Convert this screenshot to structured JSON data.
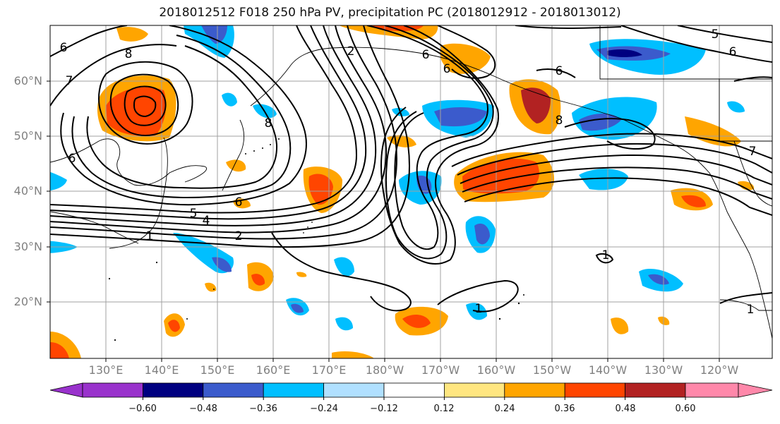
{
  "title": "2018012512 F018 250 hPa PV, precipitation PC (2018012912 - 2018013012)",
  "lat_labels": [
    "60°N",
    "50°N",
    "40°N",
    "30°N",
    "20°N"
  ],
  "lon_labels": [
    "130°E",
    "140°E",
    "150°E",
    "160°E",
    "170°E",
    "180°W",
    "170°W",
    "160°W",
    "150°W",
    "140°W",
    "130°W",
    "120°W"
  ],
  "colorbar": {
    "ticks": [
      "−0.60",
      "−0.48",
      "−0.36",
      "−0.24",
      "−0.12",
      "0.12",
      "0.24",
      "0.36",
      "0.48",
      "0.60"
    ],
    "colors": [
      "#9932CC",
      "#000080",
      "#3B5BCC",
      "#00BFFF",
      "#B0E0FF",
      "#FFFFFF",
      "#FFE680",
      "#FFA500",
      "#FF4500",
      "#B22222",
      "#FF88AA"
    ]
  },
  "contour_labels": [
    "6",
    "8",
    "7",
    "6",
    "2",
    "8",
    "6",
    "5",
    "4",
    "1",
    "2",
    "6",
    "6",
    "6",
    "8",
    "6",
    "7",
    "1",
    "1",
    "5",
    "1"
  ]
}
